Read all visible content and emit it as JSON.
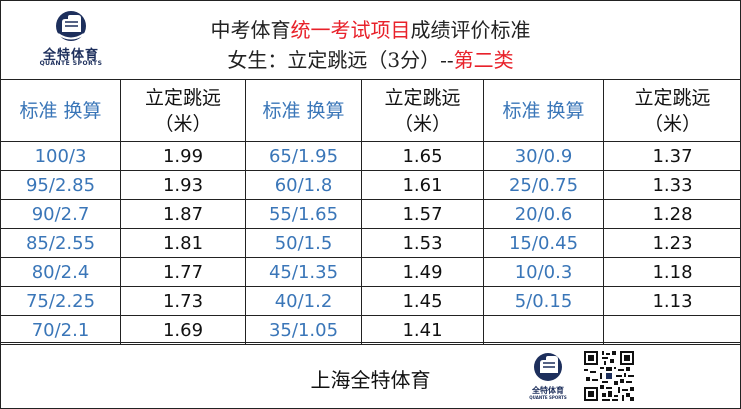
{
  "header": {
    "logo_name": "全特体育",
    "logo_sub": "QUANTE SPORTS",
    "title_line1_pre": "中考体育",
    "title_line1_hl": "统一考试项目",
    "title_line1_post": "成绩评价标准",
    "title_line2_pre": "女生：立定跳远（3分）--",
    "title_line2_hl": "第二类",
    "highlight_color": "#e8212a"
  },
  "table": {
    "col_std_label": "标准 换算",
    "col_val_label_1": "立定跳远",
    "col_val_label_2": "（米）",
    "groups": [
      {
        "rows": [
          {
            "std": "100/3",
            "val": "1.99"
          },
          {
            "std": "95/2.85",
            "val": "1.93"
          },
          {
            "std": "90/2.7",
            "val": "1.87"
          },
          {
            "std": "85/2.55",
            "val": "1.81"
          },
          {
            "std": "80/2.4",
            "val": "1.77"
          },
          {
            "std": "75/2.25",
            "val": "1.73"
          },
          {
            "std": "70/2.1",
            "val": "1.69"
          }
        ]
      },
      {
        "rows": [
          {
            "std": "65/1.95",
            "val": "1.65"
          },
          {
            "std": "60/1.8",
            "val": "1.61"
          },
          {
            "std": "55/1.65",
            "val": "1.57"
          },
          {
            "std": "50/1.5",
            "val": "1.53"
          },
          {
            "std": "45/1.35",
            "val": "1.49"
          },
          {
            "std": "40/1.2",
            "val": "1.45"
          },
          {
            "std": "35/1.05",
            "val": "1.41"
          }
        ]
      },
      {
        "rows": [
          {
            "std": "30/0.9",
            "val": "1.37"
          },
          {
            "std": "25/0.75",
            "val": "1.33"
          },
          {
            "std": "20/0.6",
            "val": "1.28"
          },
          {
            "std": "15/0.45",
            "val": "1.23"
          },
          {
            "std": "10/0.3",
            "val": "1.18"
          },
          {
            "std": "5/0.15",
            "val": "1.13"
          },
          {
            "std": "",
            "val": ""
          }
        ]
      }
    ],
    "std_color": "#3a76b8"
  },
  "footer": {
    "text": "上海全特体育",
    "logo_name": "全特体育",
    "logo_sub": "QUANTE SPORTS"
  }
}
